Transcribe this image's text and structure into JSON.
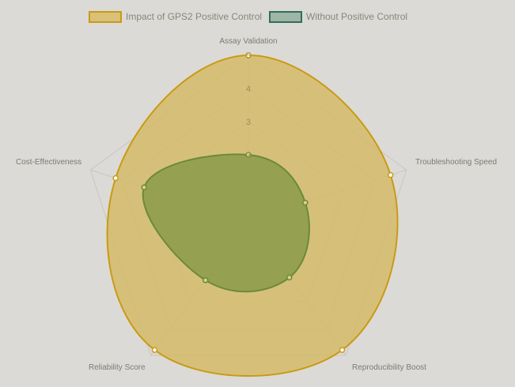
{
  "chart_data": {
    "type": "radar",
    "axes": [
      "Assay Validation",
      "Troubleshooting Speed",
      "Reproducibility Boost",
      "Reliability Score",
      "Cost-Effectiveness"
    ],
    "range": [
      0,
      5
    ],
    "ticks": [
      "2",
      "3",
      "4",
      "5"
    ],
    "tick_values": [
      2,
      3,
      4,
      5
    ],
    "legend_position": "top",
    "series": [
      {
        "name": "Impact of GPS2 Positive Control",
        "values": [
          5,
          4.5,
          4.8,
          4.8,
          4.2
        ],
        "fill": "#d4b961",
        "stroke": "#c99a14",
        "point_fill": "#ffffff"
      },
      {
        "name": "Without Positive Control",
        "values": [
          2,
          1.8,
          2.1,
          2.2,
          3.3
        ],
        "fill": "#8a9a4a",
        "stroke": "#6b8a3a",
        "point_fill": "#d8cf88"
      }
    ],
    "legend_swatch_colors": [
      {
        "fill": "#d9c17a",
        "stroke": "#c99a14"
      },
      {
        "fill": "#9fb5a5",
        "stroke": "#2f6e5e"
      }
    ]
  }
}
